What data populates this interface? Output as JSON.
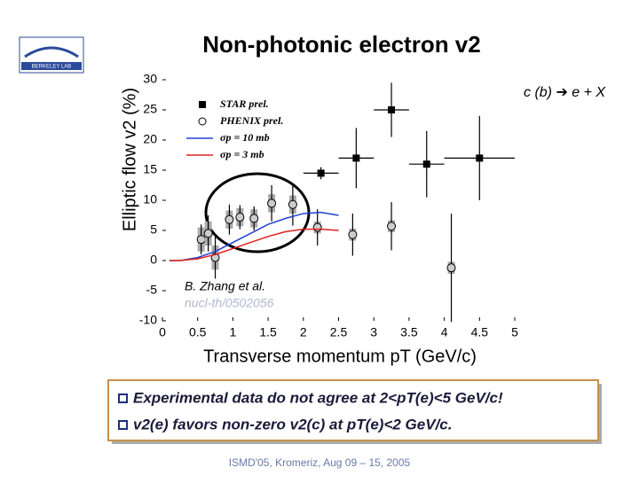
{
  "logo": "BERKELEY LAB",
  "chart_data": {
    "type": "scatter",
    "title": "Non-photonic electron v2",
    "x_label": "Transverse momentum pT (GeV/c)",
    "y_label": "Elliptic flow v2 (%)",
    "annotation": "c (b) ➔ e + X",
    "citation": [
      "B. Zhang et al.",
      "nucl-th/0502056"
    ],
    "xlim": [
      0,
      5
    ],
    "xticks": [
      0,
      0.5,
      1,
      1.5,
      2,
      2.5,
      3,
      3.5,
      4,
      4.5,
      5
    ],
    "ylim": [
      -10,
      30
    ],
    "yticks": [
      -10,
      -5,
      0,
      5,
      10,
      15,
      20,
      25,
      30
    ],
    "series": [
      {
        "name": "STAR prel.",
        "kind": "errorbar",
        "marker": "square",
        "color": "#000000",
        "x": [
          2.25,
          2.75,
          3.25,
          3.75,
          4.5
        ],
        "values": [
          14.5,
          17,
          25,
          16,
          17
        ],
        "xerr": [
          0.25,
          0.25,
          0.25,
          0.25,
          0.5
        ],
        "yerr": [
          1,
          5,
          4.5,
          5.5,
          7
        ]
      },
      {
        "name": "PHENIX prel.",
        "kind": "errorbar",
        "marker": "circle",
        "color": "#000000",
        "x": [
          0.55,
          0.65,
          0.75,
          0.95,
          1.1,
          1.3,
          1.55,
          1.85,
          2.2,
          2.7,
          3.25,
          4.1
        ],
        "values": [
          3.5,
          4.5,
          0.5,
          6.8,
          7.2,
          7,
          9.5,
          9.3,
          5.5,
          4.3,
          5.7,
          -1.2
        ],
        "yerr": [
          2.5,
          3,
          3.5,
          2.5,
          2,
          2,
          3,
          3.5,
          3,
          3.5,
          4,
          9
        ],
        "syserr": [
          2,
          2,
          2,
          1.5,
          1.5,
          1.5,
          1.5,
          1.5,
          1,
          1,
          1,
          1
        ]
      },
      {
        "name": "σp = 10 mb",
        "kind": "line",
        "color": "#2040d0",
        "x": [
          0.1,
          0.25,
          0.5,
          0.75,
          1,
          1.25,
          1.5,
          1.75,
          2,
          2.25,
          2.5
        ],
        "values": [
          0,
          0,
          0.5,
          1.5,
          3,
          4.5,
          6,
          7,
          7.8,
          8,
          7.5
        ]
      },
      {
        "name": "σp = 3 mb",
        "kind": "line",
        "color": "#e02020",
        "x": [
          0.1,
          0.25,
          0.5,
          0.75,
          1,
          1.25,
          1.5,
          1.75,
          2,
          2.25,
          2.5
        ],
        "values": [
          0,
          0,
          0.3,
          1,
          2,
          3,
          4,
          4.8,
          5.2,
          5.2,
          5
        ]
      }
    ]
  },
  "bullets": [
    "Experimental data do not agree at 2<pT(e)<5 GeV/c!",
    "v2(e) favors non-zero v2(c) at pT(e)<2 GeV/c."
  ],
  "footer": "ISMD'05, Kromeriz, Aug 09 – 15, 2005"
}
